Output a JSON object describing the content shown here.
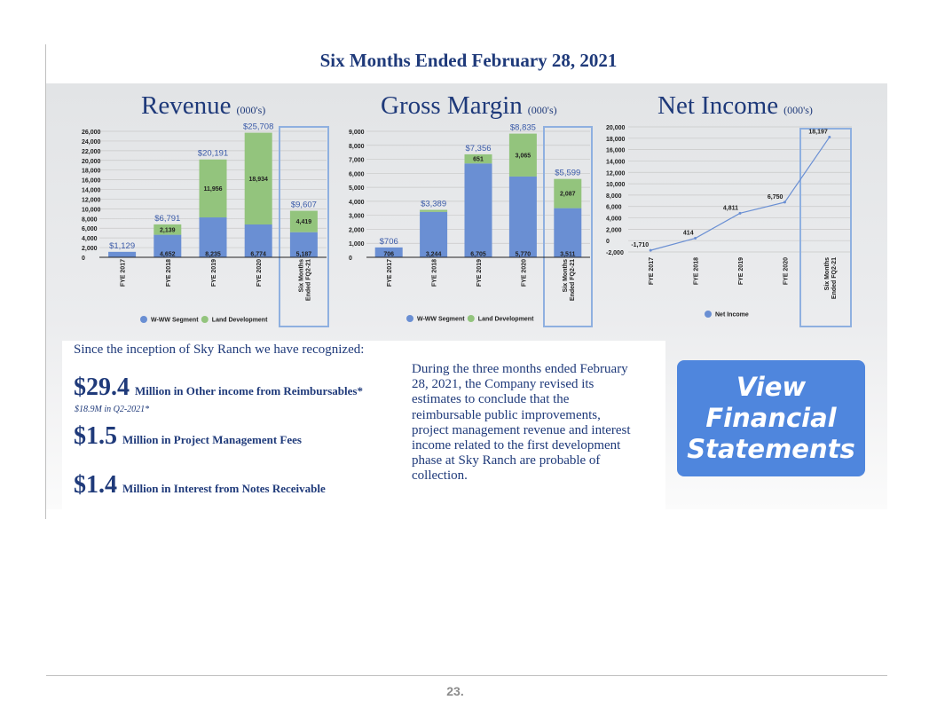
{
  "page": {
    "title": "Six Months Ended February 28, 2021",
    "page_number": "23."
  },
  "colors": {
    "w_ww": "#6a8fd3",
    "land": "#93c47d",
    "net_income": "#6a8fd3",
    "highlight": "#8fb0e0",
    "title": "#1f3a7a"
  },
  "chart_data": [
    {
      "type": "bar",
      "title": "Revenue",
      "units": "(000's)",
      "categories": [
        "FYE 2017",
        "FYE 2018",
        "FYE 2019",
        "FYE 2020",
        "Six Months Ended FQ2-21"
      ],
      "category_lines": [
        [
          "FYE 2017"
        ],
        [
          "FYE 2018"
        ],
        [
          "FYE 2019"
        ],
        [
          "FYE 2020"
        ],
        [
          "Six Months",
          "Ended FQ2-21"
        ]
      ],
      "series": [
        {
          "name": "W-WW Segment",
          "values": [
            1129,
            4652,
            8235,
            6774,
            5187
          ],
          "labels": [
            "",
            "4,652",
            "8,235",
            "6,774",
            "5,187"
          ]
        },
        {
          "name": "Land Development",
          "values": [
            0,
            2139,
            11956,
            18934,
            4419
          ],
          "labels": [
            "",
            "2,139",
            "11,956",
            "18,934",
            "4,419"
          ]
        }
      ],
      "totals": [
        "$1,129",
        "$6,791",
        "$20,191",
        "$25,708",
        "$9,607"
      ],
      "ylim": [
        0,
        26000
      ],
      "yticks": [
        0,
        2000,
        4000,
        6000,
        8000,
        10000,
        12000,
        14000,
        16000,
        18000,
        20000,
        22000,
        24000,
        26000
      ],
      "ytick_labels": [
        "0",
        "2,000",
        "4,000",
        "6,000",
        "8,000",
        "10,000",
        "12,000",
        "14,000",
        "16,000",
        "18,000",
        "20,000",
        "22,000",
        "24,000",
        "26,000"
      ],
      "highlighted_category": "Six Months Ended FQ2-21",
      "legend": "bottom"
    },
    {
      "type": "bar",
      "title": "Gross Margin",
      "units": "(000's)",
      "categories": [
        "FYE 2017",
        "FYE 2018",
        "FYE 2019",
        "FYE 2020",
        "Six Months Ended FQ2-21"
      ],
      "category_lines": [
        [
          "FYE 2017"
        ],
        [
          "FYE 2018"
        ],
        [
          "FYE 2019"
        ],
        [
          "FYE 2020"
        ],
        [
          "Six Months",
          "Ended FQ2-21"
        ]
      ],
      "series": [
        {
          "name": "W-WW Segment",
          "values": [
            706,
            3244,
            6705,
            5770,
            3511
          ],
          "labels": [
            "706",
            "3,244",
            "6,705",
            "5,770",
            "3,511"
          ]
        },
        {
          "name": "Land Development",
          "values": [
            0,
            145,
            651,
            3065,
            2087
          ],
          "labels": [
            "",
            "",
            "651",
            "3,065",
            "2,087"
          ]
        }
      ],
      "totals": [
        "$706",
        "$3,389",
        "$7,356",
        "$8,835",
        "$5,599"
      ],
      "ylim": [
        0,
        9000
      ],
      "yticks": [
        0,
        1000,
        2000,
        3000,
        4000,
        5000,
        6000,
        7000,
        8000,
        9000
      ],
      "ytick_labels": [
        "0",
        "1,000",
        "2,000",
        "3,000",
        "4,000",
        "5,000",
        "6,000",
        "7,000",
        "8,000",
        "9,000"
      ],
      "highlighted_category": "Six Months Ended FQ2-21",
      "legend": "bottom"
    },
    {
      "type": "line",
      "title": "Net Income",
      "units": "(000's)",
      "categories": [
        "FYE 2017",
        "FYE 2018",
        "FYE 2019",
        "FYE 2020",
        "Six Months Ended FQ2-21"
      ],
      "category_lines": [
        [
          "FYE 2017"
        ],
        [
          "FYE 2018"
        ],
        [
          "FYE 2019"
        ],
        [
          "FYE 2020"
        ],
        [
          "Six Months",
          "Ended FQ2-21"
        ]
      ],
      "series": [
        {
          "name": "Net Income",
          "values": [
            -1710,
            414,
            4811,
            6750,
            18197
          ],
          "labels": [
            "-1,710",
            "414",
            "4,811",
            "6,750",
            "18,197"
          ]
        }
      ],
      "ylim": [
        -2000,
        20000
      ],
      "yticks": [
        -2000,
        0,
        2000,
        4000,
        6000,
        8000,
        10000,
        12000,
        14000,
        16000,
        18000,
        20000
      ],
      "ytick_labels": [
        "-2,000",
        "0",
        "2,000",
        "4,000",
        "6,000",
        "8,000",
        "10,000",
        "12,000",
        "14,000",
        "16,000",
        "18,000",
        "20,000"
      ],
      "highlighted_category": "Six Months Ended FQ2-21",
      "legend": "bottom"
    }
  ],
  "recognized": {
    "heading": "Since the inception of Sky Ranch we have recognized:",
    "items": [
      {
        "amount": "$29.4",
        "desc": "Million in Other income from Reimbursables*",
        "note": "$18.9M in Q2-2021*"
      },
      {
        "amount": "$1.5",
        "desc": "Million in Project Management Fees"
      },
      {
        "amount": "$1.4",
        "desc": "Million in Interest from Notes Receivable"
      }
    ]
  },
  "narrative": {
    "lines": [
      "During the three months ended February",
      "28, 2021, the Company revised its",
      "estimates to conclude that the",
      "reimbursable public improvements,",
      "project management revenue and interest",
      "income related to the first development",
      "phase at Sky Ranch are probable of",
      "collection."
    ]
  },
  "button": {
    "lines": [
      "View",
      "Financial",
      "Statements"
    ]
  }
}
